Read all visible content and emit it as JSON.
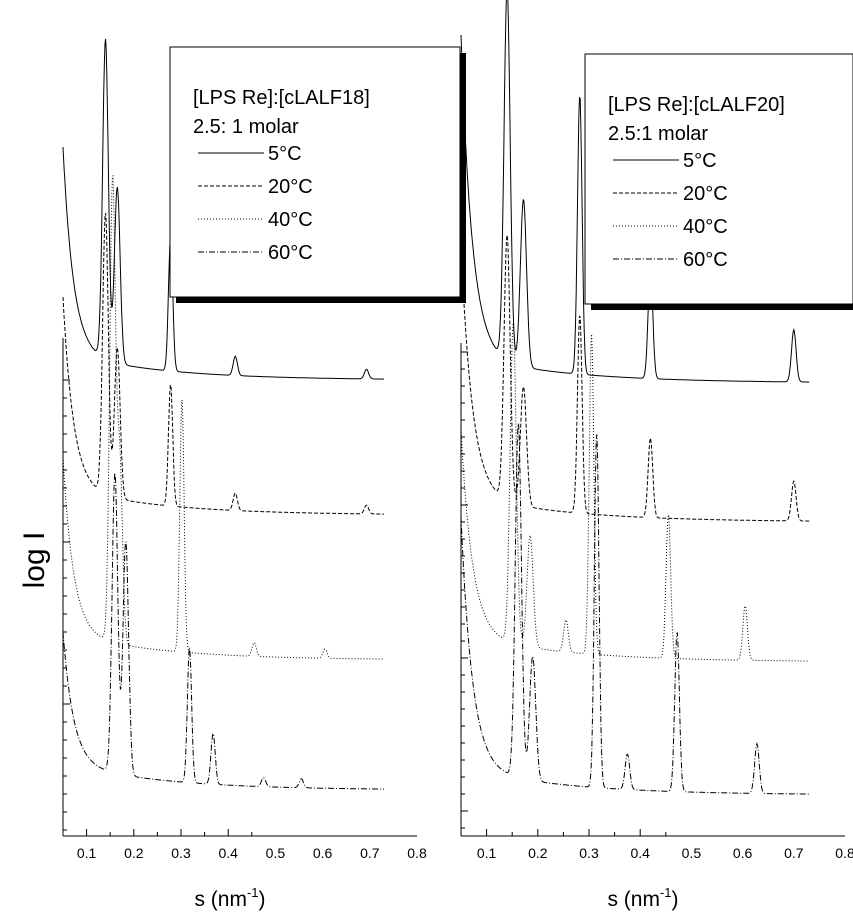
{
  "ylabel": "log I",
  "chart_data": [
    {
      "type": "line",
      "panel": "left",
      "xlabel": "s (nm",
      "xlabel_sup": "-1",
      "xlabel_close": ")",
      "xlim": [
        0.05,
        0.8
      ],
      "xticks": [
        "0.1",
        "0.2",
        "0.3",
        "0.4",
        "0.5",
        "0.6",
        "0.7",
        "0.8"
      ],
      "legend": {
        "title_line1": "[LPS Re]:[cLALF18]",
        "title_line2": " 2.5: 1 molar",
        "placement": "top-right"
      },
      "series": [
        {
          "name": "5°C",
          "dash": "solid",
          "x_range": [
            0.05,
            0.73
          ],
          "peaks": [
            [
              0.14,
              1.0
            ],
            [
              0.165,
              0.55
            ],
            [
              0.278,
              0.42
            ],
            [
              0.415,
              0.06
            ],
            [
              0.693,
              0.03
            ]
          ]
        },
        {
          "name": "20°C",
          "dash": "dashed",
          "x_range": [
            0.05,
            0.73
          ],
          "peaks": [
            [
              0.14,
              0.97
            ],
            [
              0.165,
              0.52
            ],
            [
              0.278,
              0.42
            ],
            [
              0.415,
              0.06
            ],
            [
              0.693,
              0.03
            ]
          ]
        },
        {
          "name": "40°C",
          "dash": "dotted",
          "x_range": [
            0.05,
            0.73
          ],
          "peaks": [
            [
              0.155,
              1.0
            ],
            [
              0.17,
              0.4
            ],
            [
              0.302,
              0.55
            ],
            [
              0.455,
              0.03
            ],
            [
              0.605,
              0.02
            ]
          ]
        },
        {
          "name": "60°C",
          "dash": "dashdot",
          "x_range": [
            0.05,
            0.73
          ],
          "peaks": [
            [
              0.16,
              1.0
            ],
            [
              0.183,
              0.78
            ],
            [
              0.318,
              0.45
            ],
            [
              0.368,
              0.17
            ],
            [
              0.475,
              0.03
            ],
            [
              0.555,
              0.03
            ]
          ]
        }
      ]
    },
    {
      "type": "line",
      "panel": "right",
      "xlabel": "s (nm",
      "xlabel_sup": "-1",
      "xlabel_close": ")",
      "xlim": [
        0.05,
        0.8
      ],
      "xticks": [
        "0.1",
        "0.2",
        "0.3",
        "0.4",
        "0.5",
        "0.6",
        "0.7",
        "0.8"
      ],
      "legend": {
        "title_line1": "[LPS Re]:[cLALF20]",
        "title_line2": " 2.5:1 molar",
        "placement": "top-right"
      },
      "series": [
        {
          "name": "5°C",
          "dash": "solid",
          "x_range": [
            0.05,
            0.73
          ],
          "peaks": [
            [
              0.14,
              1.0
            ],
            [
              0.172,
              0.45
            ],
            [
              0.282,
              0.75
            ],
            [
              0.42,
              0.3
            ],
            [
              0.7,
              0.14
            ]
          ]
        },
        {
          "name": "20°C",
          "dash": "dashed",
          "x_range": [
            0.05,
            0.73
          ],
          "peaks": [
            [
              0.14,
              1.0
            ],
            [
              0.172,
              0.45
            ],
            [
              0.282,
              0.75
            ],
            [
              0.42,
              0.3
            ],
            [
              0.7,
              0.15
            ]
          ]
        },
        {
          "name": "40°C",
          "dash": "dotted",
          "x_range": [
            0.05,
            0.73
          ],
          "peaks": [
            [
              0.152,
              1.0
            ],
            [
              0.185,
              0.35
            ],
            [
              0.255,
              0.1
            ],
            [
              0.305,
              1.0
            ],
            [
              0.455,
              0.45
            ],
            [
              0.605,
              0.17
            ]
          ]
        },
        {
          "name": "60°C",
          "dash": "dashdot",
          "x_range": [
            0.05,
            0.73
          ],
          "peaks": [
            [
              0.162,
              1.0
            ],
            [
              0.19,
              0.35
            ],
            [
              0.315,
              1.0
            ],
            [
              0.375,
              0.1
            ],
            [
              0.472,
              0.45
            ],
            [
              0.628,
              0.14
            ]
          ]
        }
      ]
    }
  ]
}
